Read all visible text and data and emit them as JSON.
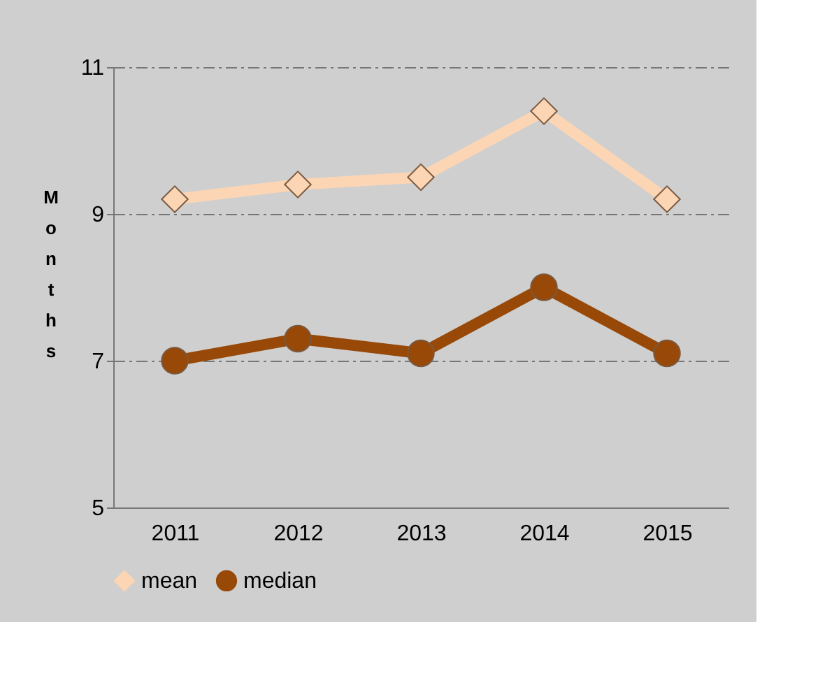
{
  "chart_data": {
    "type": "line",
    "ylabel": "Months",
    "categories": [
      "2011",
      "2012",
      "2013",
      "2014",
      "2015"
    ],
    "series": [
      {
        "name": "mean",
        "color": "#fcd5b4",
        "marker": "diamond",
        "values": [
          9.2,
          9.4,
          9.5,
          10.4,
          9.2
        ]
      },
      {
        "name": "median",
        "color": "#984807",
        "marker": "circle",
        "values": [
          7.0,
          7.3,
          7.1,
          8.0,
          7.1
        ]
      }
    ],
    "ylim": [
      5,
      11
    ],
    "yticks": [
      5,
      7,
      9,
      11
    ],
    "grid": "y",
    "legend": "bottom"
  }
}
